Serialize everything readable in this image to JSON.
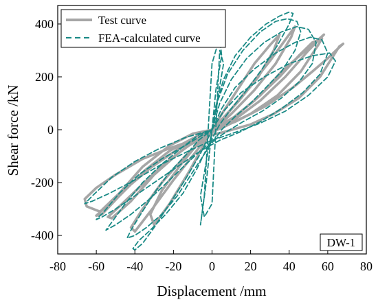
{
  "chart_data": {
    "type": "line",
    "xlabel": "Displacement /mm",
    "ylabel": "Shear force /kN",
    "xlim": [
      -80,
      80
    ],
    "ylim": [
      -470,
      470
    ],
    "xticks": [
      -80,
      -60,
      -40,
      -20,
      0,
      20,
      40,
      60,
      80
    ],
    "yticks": [
      -400,
      -200,
      0,
      200,
      400
    ],
    "grid": false,
    "legend_position": "top-left",
    "annotation": "DW-1",
    "series": [
      {
        "name": "Test curve",
        "style": "solid",
        "color": "#a6a6a6",
        "loops": [
          {
            "x": [
              0,
              12,
              28,
              42,
              52,
              60,
              65,
              68,
              66,
              56,
              45,
              32,
              20,
              8,
              0,
              -10,
              -22,
              -36,
              -50,
              -60,
              -66,
              -65,
              -58,
              -48,
              -36,
              -22,
              -10,
              0
            ],
            "y": [
              0,
              30,
              90,
              160,
              220,
              270,
              305,
              325,
              315,
              200,
              120,
              60,
              20,
              -5,
              -20,
              -40,
              -70,
              -110,
              -170,
              -220,
              -262,
              -290,
              -310,
              -240,
              -140,
              -60,
              -15,
              0
            ]
          },
          {
            "x": [
              0,
              10,
              22,
              35,
              45,
              52,
              57,
              55,
              46,
              34,
              20,
              6,
              -5,
              -18,
              -32,
              -45,
              -54,
              -60,
              -57,
              -48,
              -35,
              -22,
              -8,
              0
            ],
            "y": [
              0,
              40,
              110,
              200,
              280,
              330,
              345,
              320,
              220,
              130,
              60,
              10,
              -25,
              -75,
              -145,
              -225,
              -285,
              -325,
              -320,
              -250,
              -155,
              -80,
              -25,
              0
            ]
          },
          {
            "x": [
              0,
              8,
              18,
              30,
              38,
              43,
              41,
              33,
              22,
              10,
              -2,
              -14,
              -26,
              -36,
              -42,
              -40,
              -31,
              -20,
              -8,
              0
            ],
            "y": [
              0,
              60,
              150,
              260,
              340,
              390,
              350,
              250,
              150,
              60,
              -20,
              -100,
              -200,
              -300,
              -370,
              -385,
              -300,
              -190,
              -80,
              0
            ]
          },
          {
            "x": [
              0,
              12,
              25,
              36,
              47,
              55,
              58,
              50,
              38,
              25,
              12,
              0,
              -12,
              -25,
              -38,
              -48,
              -54,
              -52,
              -42,
              -30,
              -16,
              0
            ],
            "y": [
              0,
              50,
              130,
              220,
              290,
              340,
              360,
              300,
              200,
              110,
              40,
              -10,
              -60,
              -130,
              -220,
              -290,
              -330,
              -335,
              -270,
              -170,
              -80,
              0
            ]
          },
          {
            "x": [
              0,
              6,
              14,
              22,
              30,
              35,
              32,
              24,
              14,
              4,
              -6,
              -16,
              -26,
              -32,
              -30,
              -22,
              -12,
              0
            ],
            "y": [
              0,
              70,
              160,
              250,
              320,
              360,
              300,
              200,
              110,
              30,
              -40,
              -130,
              -230,
              -320,
              -360,
              -280,
              -160,
              0
            ]
          }
        ]
      },
      {
        "name": "FEA-calculated curve",
        "style": "dashed",
        "color": "#1a8a86",
        "loops": [
          {
            "x": [
              0,
              2,
              6,
              12,
              20,
              28,
              35,
              40,
              42,
              40,
              34,
              26,
              18,
              10,
              4,
              -2,
              -8,
              -15,
              -24,
              -32,
              -38,
              -41,
              -40,
              -36,
              -30,
              -22,
              -14,
              -6,
              0
            ],
            "y": [
              0,
              90,
              190,
              280,
              350,
              400,
              430,
              445,
              440,
              400,
              320,
              230,
              150,
              80,
              20,
              -60,
              -150,
              -240,
              -320,
              -380,
              -420,
              -450,
              -455,
              -430,
              -370,
              -280,
              -190,
              -90,
              0
            ]
          },
          {
            "x": [
              0,
              3,
              8,
              16,
              25,
              33,
              39,
              44,
              46,
              43,
              36,
              28,
              20,
              12,
              5,
              -2,
              -10,
              -18,
              -26,
              -34,
              -40,
              -44,
              -42,
              -37,
              -30,
              -22,
              -14,
              -7,
              0
            ],
            "y": [
              0,
              110,
              210,
              300,
              370,
              410,
              420,
              410,
              370,
              300,
              220,
              160,
              100,
              50,
              0,
              -70,
              -160,
              -250,
              -320,
              -370,
              -400,
              -410,
              -380,
              -320,
              -240,
              -160,
              -100,
              -40,
              0
            ]
          },
          {
            "x": [
              0,
              4,
              10,
              18,
              27,
              36,
              44,
              50,
              54,
              52,
              45,
              36,
              26,
              16,
              7,
              -3,
              -12,
              -22,
              -32,
              -42,
              -50,
              -55,
              -52,
              -45,
              -36,
              -26,
              -16,
              -7,
              0
            ],
            "y": [
              0,
              100,
              190,
              270,
              330,
              370,
              390,
              380,
              330,
              250,
              180,
              120,
              70,
              30,
              -10,
              -60,
              -120,
              -190,
              -260,
              -320,
              -360,
              -380,
              -350,
              -280,
              -200,
              -130,
              -70,
              -20,
              0
            ]
          },
          {
            "x": [
              0,
              5,
              12,
              22,
              33,
              43,
              51,
              57,
              60,
              56,
              47,
              36,
              25,
              14,
              4,
              -6,
              -16,
              -28,
              -40,
              -50,
              -57,
              -60,
              -56,
              -48,
              -38,
              -26,
              -14,
              -5,
              0
            ],
            "y": [
              0,
              80,
              160,
              230,
              290,
              330,
              350,
              340,
              290,
              210,
              140,
              80,
              30,
              -10,
              -40,
              -80,
              -130,
              -190,
              -250,
              -300,
              -330,
              -340,
              -310,
              -240,
              -170,
              -110,
              -60,
              -20,
              0
            ]
          },
          {
            "x": [
              0,
              6,
              15,
              27,
              40,
              52,
              61,
              64,
              60,
              50,
              38,
              25,
              12,
              0,
              -12,
              -26,
              -40,
              -53,
              -62,
              -66,
              -62,
              -52,
              -40,
              -27,
              -14,
              0
            ],
            "y": [
              0,
              70,
              140,
              200,
              250,
              280,
              290,
              260,
              200,
              130,
              70,
              25,
              -10,
              -40,
              -80,
              -130,
              -190,
              -240,
              -270,
              -280,
              -250,
              -180,
              -120,
              -70,
              -30,
              0
            ]
          },
          {
            "x": [
              0,
              -3,
              -6,
              -4,
              0,
              4,
              6,
              3,
              0
            ],
            "y": [
              0,
              -120,
              -250,
              -330,
              -280,
              300,
              250,
              120,
              0
            ]
          },
          {
            "x": [
              0,
              2,
              5,
              4,
              0,
              -4,
              -6,
              -3,
              0
            ],
            "y": [
              0,
              150,
              280,
              350,
              250,
              -250,
              -360,
              -200,
              0
            ]
          }
        ]
      }
    ]
  }
}
